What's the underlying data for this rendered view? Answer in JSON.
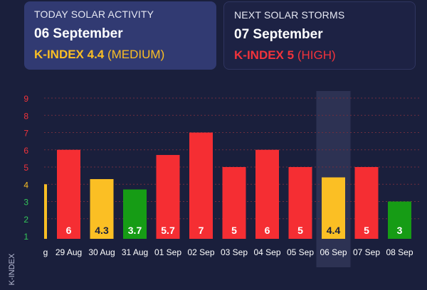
{
  "today": {
    "heading": "TODAY SOLAR ACTIVITY",
    "date": "06 September",
    "kindex_label": "K-INDEX 4.4",
    "level": "(MEDIUM)"
  },
  "next": {
    "heading": "NEXT SOLAR STORMS",
    "date": "07 September",
    "kindex_label": "K-INDEX 5",
    "level": "(HIGH)"
  },
  "chart_data": {
    "type": "bar",
    "ylabel": "K-INDEX",
    "ylim": [
      1,
      9
    ],
    "y_ticks": [
      1,
      2,
      3,
      4,
      5,
      6,
      7,
      8,
      9
    ],
    "grid": true,
    "highlighted_category": "06 Sep",
    "categories": [
      "g",
      "29 Aug",
      "30 Aug",
      "31 Aug",
      "01 Sep",
      "02 Sep",
      "03 Sep",
      "04 Sep",
      "05 Sep",
      "06 Sep",
      "07 Sep",
      "08 Sep"
    ],
    "values": [
      4,
      6,
      4.3,
      3.7,
      5.7,
      7,
      5,
      6,
      5,
      4.4,
      5,
      3
    ],
    "value_labels": [
      "",
      "6",
      "4.3",
      "3.7",
      "5.7",
      "7",
      "5",
      "6",
      "5",
      "4.4",
      "5",
      "3"
    ],
    "colors": {
      "low": "#169c15",
      "medium": "#fbbf24",
      "high": "#f52e33",
      "highlight_band": "#2d3253",
      "grid": "#6e2e3f",
      "tick_low": "#34c759",
      "tick_medium": "#fbbf24",
      "tick_high": "#f2333b"
    }
  }
}
